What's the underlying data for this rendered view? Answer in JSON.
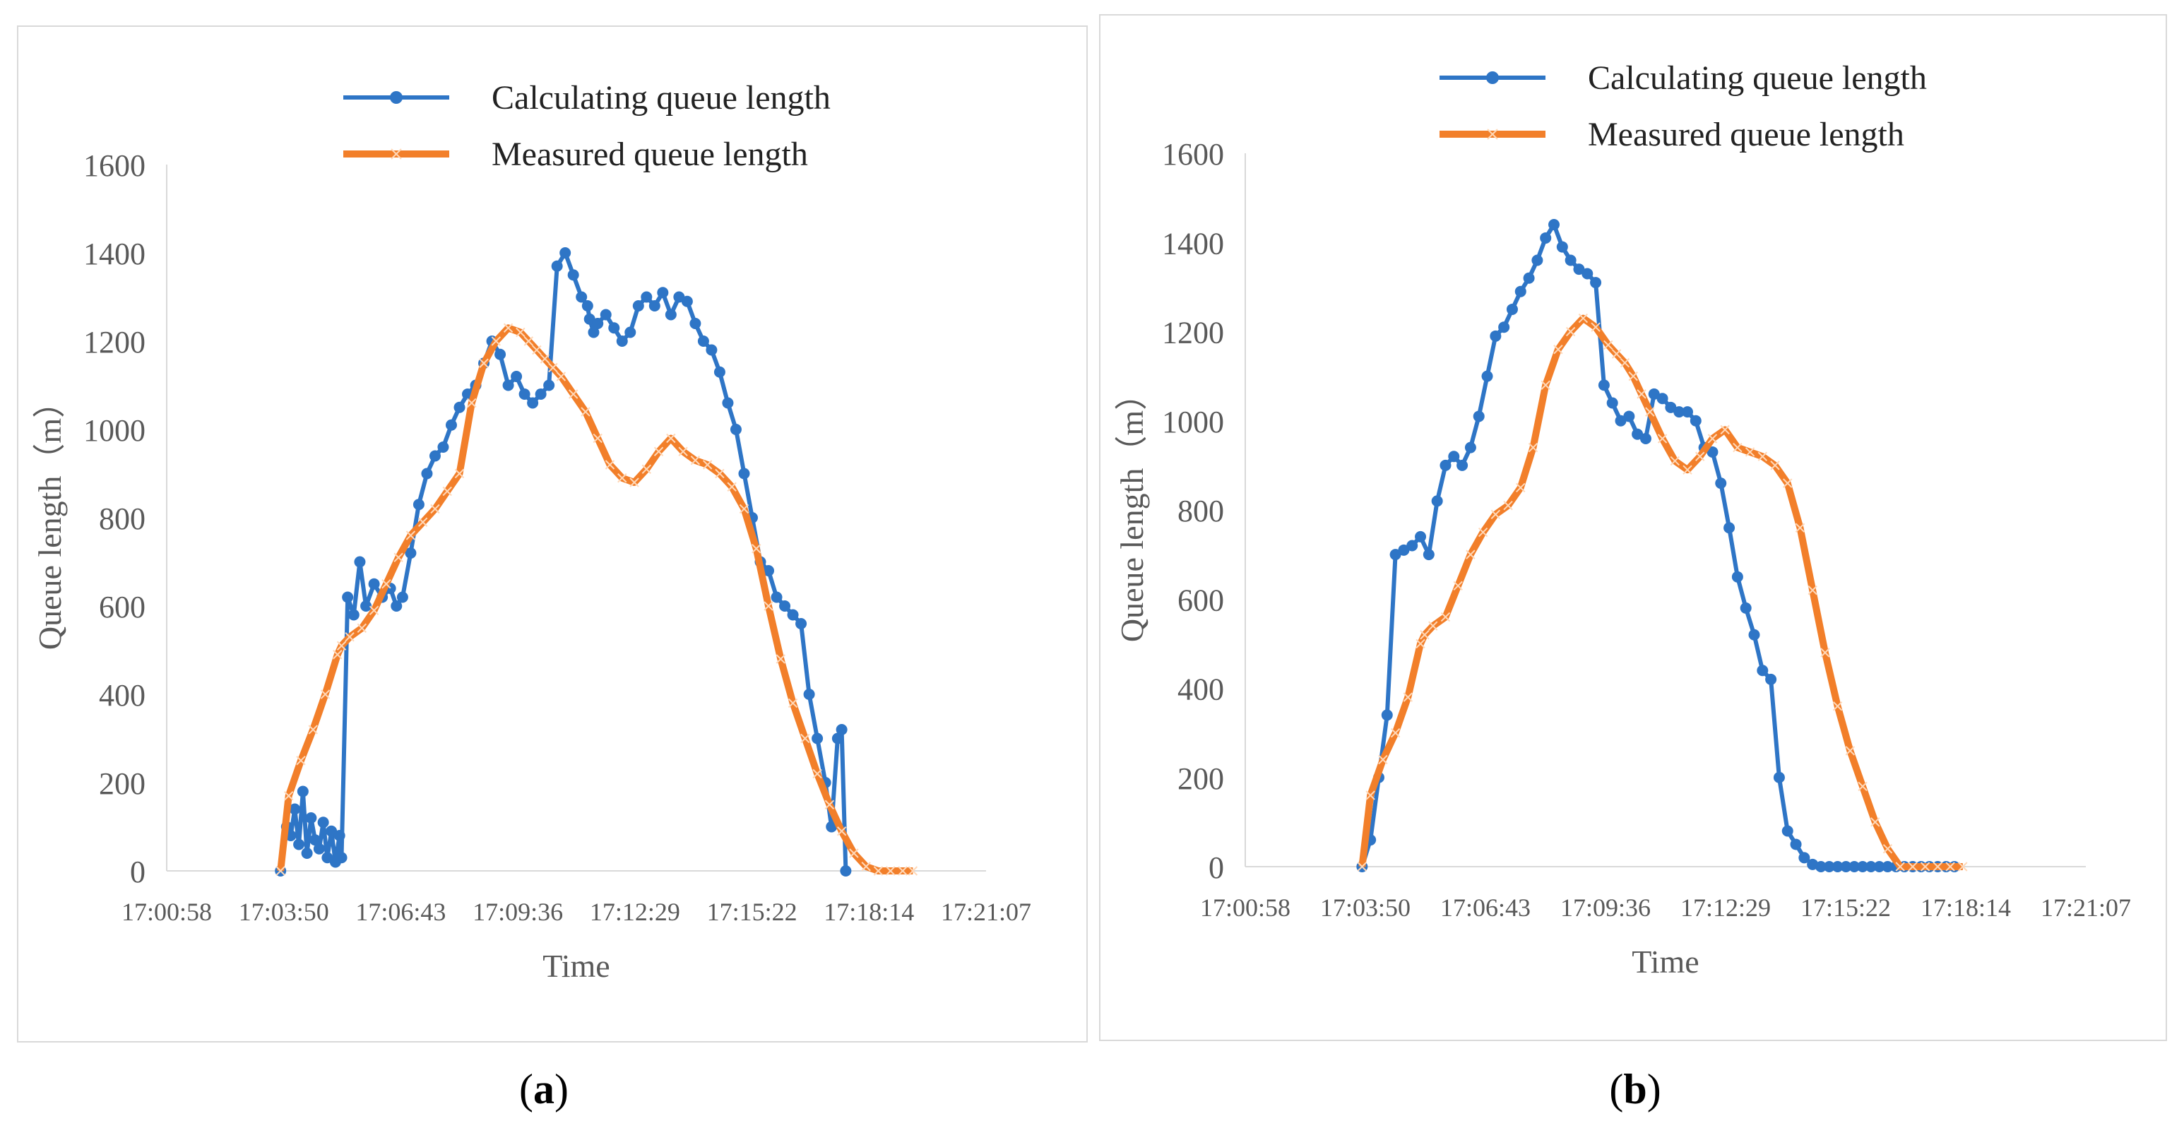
{
  "colors": {
    "calc": "#2e75c6",
    "meas": "#f27f2a",
    "axis": "#d9d9d9",
    "text": "#595959"
  },
  "captions": {
    "a": "a",
    "b": "b"
  },
  "chart_data": [
    {
      "id": "a",
      "type": "line",
      "xlabel": "Time",
      "ylabel": "Queue length（m）",
      "ylim": [
        0,
        1600
      ],
      "yticks": [
        0,
        200,
        400,
        600,
        800,
        1000,
        1200,
        1400,
        1600
      ],
      "x_tick_labels": [
        "17:00:58",
        "17:03:50",
        "17:06:43",
        "17:09:36",
        "17:12:29",
        "17:15:22",
        "17:18:14",
        "17:21:07"
      ],
      "xlim_minutes": [
        0,
        20.15
      ],
      "legend": "top-right",
      "series": [
        {
          "name": "Calculating queue length",
          "marker": "circle",
          "x": [
            2.8,
            2.95,
            3.05,
            3.15,
            3.25,
            3.35,
            3.45,
            3.55,
            3.65,
            3.75,
            3.85,
            3.95,
            4.05,
            4.15,
            4.25,
            4.3,
            4.45,
            4.6,
            4.75,
            4.9,
            5.1,
            5.3,
            5.5,
            5.65,
            5.8,
            6.0,
            6.2,
            6.4,
            6.6,
            6.8,
            7.0,
            7.2,
            7.4,
            7.6,
            7.8,
            8.0,
            8.2,
            8.4,
            8.6,
            8.8,
            9.0,
            9.2,
            9.4,
            9.6,
            9.8,
            10.0,
            10.2,
            10.35,
            10.4,
            10.5,
            10.6,
            10.8,
            11.0,
            11.2,
            11.4,
            11.6,
            11.8,
            12.0,
            12.2,
            12.4,
            12.6,
            12.8,
            13.0,
            13.2,
            13.4,
            13.6,
            13.8,
            14.0,
            14.2,
            14.4,
            14.6,
            14.8,
            15.0,
            15.2,
            15.4,
            15.6,
            15.8,
            16.0,
            16.2,
            16.35,
            16.5,
            16.6,
            16.7
          ],
          "values": [
            0,
            100,
            80,
            140,
            60,
            180,
            40,
            120,
            70,
            50,
            110,
            30,
            90,
            20,
            80,
            30,
            620,
            580,
            700,
            600,
            650,
            620,
            640,
            600,
            620,
            720,
            830,
            900,
            940,
            960,
            1010,
            1050,
            1080,
            1100,
            1150,
            1200,
            1170,
            1100,
            1120,
            1080,
            1060,
            1080,
            1100,
            1370,
            1400,
            1350,
            1300,
            1280,
            1250,
            1220,
            1240,
            1260,
            1230,
            1200,
            1220,
            1280,
            1300,
            1280,
            1310,
            1260,
            1300,
            1290,
            1240,
            1200,
            1180,
            1130,
            1060,
            1000,
            900,
            800,
            700,
            680,
            620,
            600,
            580,
            560,
            400,
            300,
            200,
            100,
            300,
            320,
            0
          ]
        },
        {
          "name": "Measured queue length",
          "marker": "x",
          "x": [
            2.8,
            3.0,
            3.3,
            3.6,
            3.9,
            4.2,
            4.3,
            4.5,
            4.8,
            5.1,
            5.4,
            5.7,
            6.0,
            6.3,
            6.6,
            6.9,
            7.2,
            7.5,
            7.8,
            8.1,
            8.4,
            8.7,
            8.9,
            9.1,
            9.3,
            9.5,
            9.7,
            10.0,
            10.3,
            10.6,
            10.9,
            11.2,
            11.5,
            11.8,
            12.1,
            12.4,
            12.7,
            13.0,
            13.3,
            13.6,
            13.9,
            14.2,
            14.5,
            14.8,
            15.1,
            15.4,
            15.7,
            16.0,
            16.3,
            16.6,
            16.9,
            17.2,
            17.5,
            17.8,
            18.1,
            18.35
          ],
          "values": [
            0,
            170,
            250,
            320,
            400,
            490,
            510,
            530,
            550,
            590,
            650,
            710,
            760,
            790,
            820,
            860,
            900,
            1060,
            1150,
            1200,
            1230,
            1220,
            1200,
            1180,
            1160,
            1140,
            1120,
            1080,
            1040,
            980,
            920,
            890,
            880,
            910,
            950,
            980,
            950,
            930,
            920,
            900,
            870,
            820,
            730,
            600,
            480,
            380,
            300,
            220,
            150,
            90,
            40,
            10,
            0,
            0,
            0,
            0
          ]
        }
      ]
    },
    {
      "id": "b",
      "type": "line",
      "xlabel": "Time",
      "ylabel": "Queue length（m）",
      "ylim": [
        0,
        1600
      ],
      "yticks": [
        0,
        200,
        400,
        600,
        800,
        1000,
        1200,
        1400,
        1600
      ],
      "x_tick_labels": [
        "17:00:58",
        "17:03:50",
        "17:06:43",
        "17:09:36",
        "17:12:29",
        "17:15:22",
        "17:18:14",
        "17:21:07"
      ],
      "xlim_minutes": [
        0,
        20.15
      ],
      "legend": "top",
      "series": [
        {
          "name": "Calculating queue length",
          "marker": "circle",
          "x": [
            2.8,
            3.0,
            3.2,
            3.4,
            3.6,
            3.8,
            4.0,
            4.2,
            4.4,
            4.6,
            4.8,
            5.0,
            5.2,
            5.4,
            5.6,
            5.8,
            6.0,
            6.2,
            6.4,
            6.6,
            6.8,
            7.0,
            7.2,
            7.4,
            7.6,
            7.8,
            8.0,
            8.2,
            8.4,
            8.6,
            8.8,
            9.0,
            9.2,
            9.4,
            9.6,
            9.8,
            10.0,
            10.2,
            10.4,
            10.6,
            10.8,
            11.0,
            11.2,
            11.4,
            11.6,
            11.8,
            12.0,
            12.2,
            12.4,
            12.6,
            12.8,
            13.0,
            13.2,
            13.4,
            13.6,
            13.8,
            14.0,
            14.2,
            14.4,
            14.6,
            14.8,
            15.0,
            15.2,
            15.4,
            15.6,
            15.8,
            16.0,
            16.2,
            16.4,
            16.6,
            16.8,
            17.0
          ],
          "values": [
            0,
            60,
            200,
            340,
            700,
            710,
            720,
            740,
            700,
            820,
            900,
            920,
            900,
            940,
            1010,
            1100,
            1190,
            1210,
            1250,
            1290,
            1320,
            1360,
            1410,
            1440,
            1390,
            1360,
            1340,
            1330,
            1310,
            1080,
            1040,
            1000,
            1010,
            970,
            960,
            1060,
            1050,
            1030,
            1020,
            1020,
            1000,
            940,
            930,
            860,
            760,
            650,
            580,
            520,
            440,
            420,
            200,
            80,
            50,
            20,
            5,
            0,
            0,
            0,
            0,
            0,
            0,
            0,
            0,
            0,
            0,
            0,
            0,
            0,
            0,
            0,
            0,
            0
          ]
        },
        {
          "name": "Measured queue length",
          "marker": "x",
          "x": [
            2.8,
            3.0,
            3.3,
            3.6,
            3.9,
            4.2,
            4.3,
            4.5,
            4.8,
            5.1,
            5.4,
            5.7,
            6.0,
            6.3,
            6.6,
            6.9,
            7.2,
            7.5,
            7.8,
            8.1,
            8.4,
            8.7,
            8.9,
            9.1,
            9.3,
            9.5,
            9.7,
            10.0,
            10.3,
            10.6,
            10.9,
            11.2,
            11.5,
            11.8,
            12.1,
            12.4,
            12.7,
            13.0,
            13.3,
            13.6,
            13.9,
            14.2,
            14.5,
            14.8,
            15.1,
            15.4,
            15.7,
            16.0,
            16.3,
            16.6,
            16.9,
            17.2
          ],
          "values": [
            0,
            160,
            240,
            300,
            380,
            500,
            520,
            540,
            560,
            630,
            700,
            750,
            790,
            810,
            850,
            940,
            1080,
            1160,
            1200,
            1230,
            1210,
            1170,
            1150,
            1130,
            1100,
            1060,
            1020,
            960,
            910,
            890,
            920,
            960,
            980,
            940,
            930,
            920,
            900,
            860,
            760,
            620,
            480,
            360,
            260,
            180,
            100,
            40,
            0,
            0,
            0,
            0,
            0,
            0
          ]
        }
      ]
    }
  ]
}
